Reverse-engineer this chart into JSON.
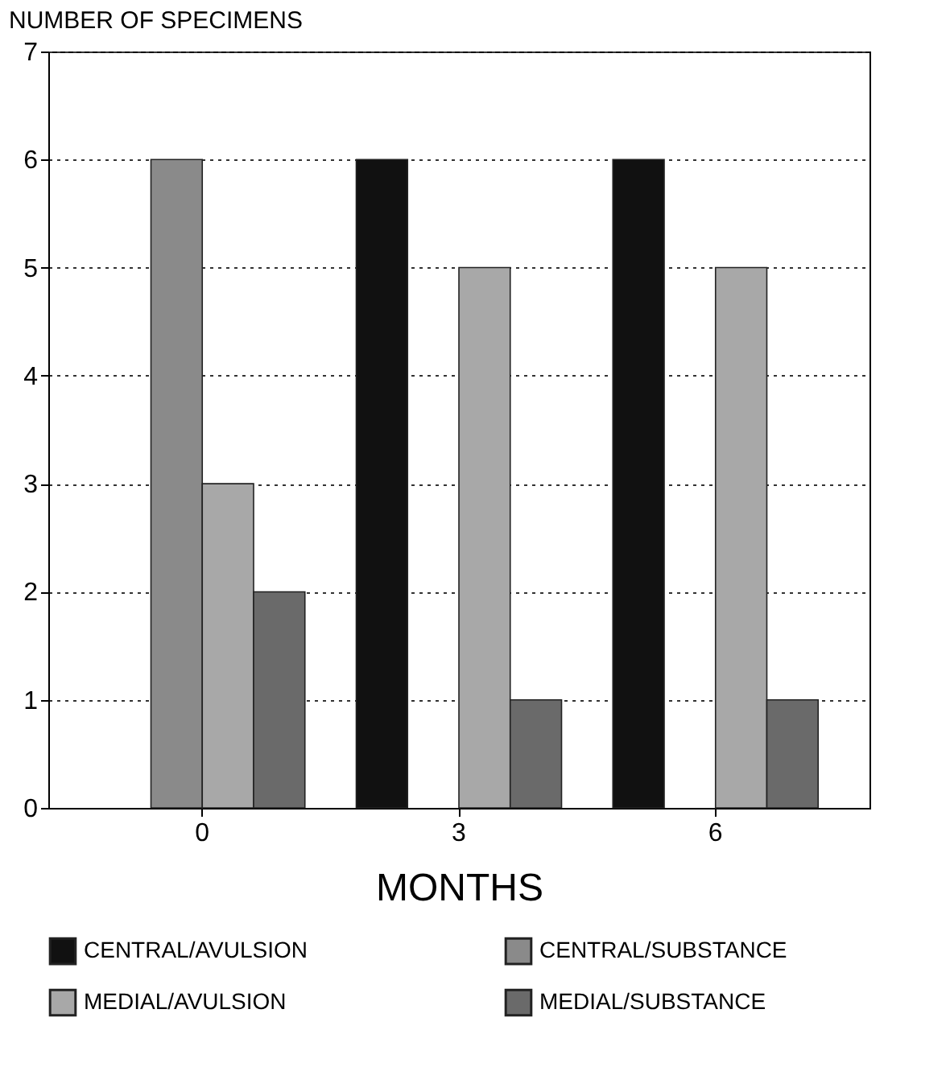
{
  "chart_data": {
    "type": "bar",
    "xlabel": "MONTHS",
    "ylabel": "NUMBER OF SPECIMENS",
    "categories": [
      "0",
      "3",
      "6"
    ],
    "series": [
      {
        "name": "CENTRAL/AVULSION",
        "color": "#111111",
        "values": [
          0,
          6,
          6
        ]
      },
      {
        "name": "CENTRAL/SUBSTANCE",
        "color": "#8a8a8a",
        "values": [
          6,
          0,
          0
        ]
      },
      {
        "name": "MEDIAL/AVULSION",
        "color": "#a8a8a8",
        "values": [
          3,
          5,
          5
        ]
      },
      {
        "name": "MEDIAL/SUBSTANCE",
        "color": "#6a6a6a",
        "values": [
          2,
          1,
          1
        ]
      }
    ],
    "ylim": [
      0,
      7
    ],
    "yticks": [
      0,
      1,
      2,
      3,
      4,
      5,
      6,
      7
    ],
    "grid": "y",
    "legend": "bottom"
  }
}
